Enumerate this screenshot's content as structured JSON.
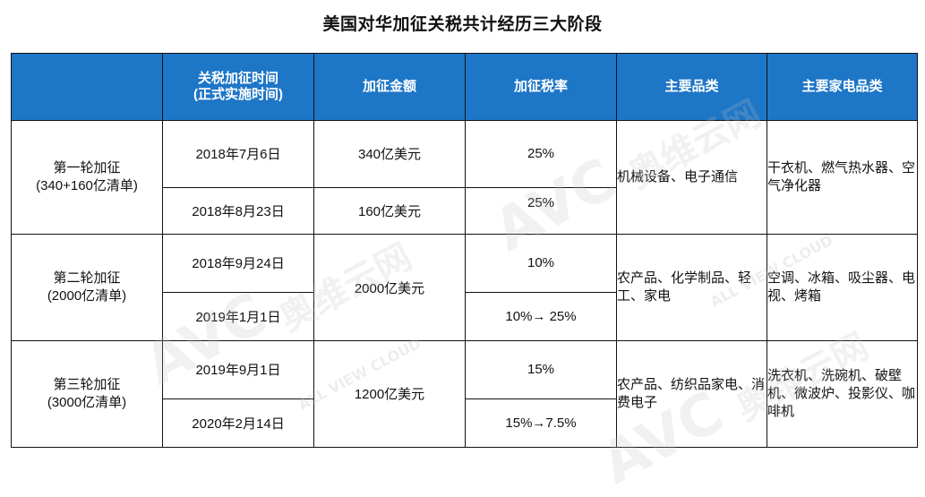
{
  "title": "美国对华加征关税共计经历三大阶段",
  "header": {
    "stage": "",
    "time_line1": "关税加征时间",
    "time_line2": "(正式实施时间)",
    "amount": "加征金额",
    "rate": "加征税率",
    "products": "主要品类",
    "appliances": "主要家电品类"
  },
  "rounds": [
    {
      "stage": "第一轮加征",
      "stage_sub": "(340+160亿清单)",
      "rows": [
        {
          "date": "2018年7月6日",
          "amount": "340亿美元",
          "rate": "25%"
        },
        {
          "date": "2018年8月23日",
          "amount": "160亿美元",
          "rate": "25%"
        }
      ],
      "products": "机械设备、电子通信",
      "appliances": "干衣机、燃气热水器、空气净化器"
    },
    {
      "stage": "第二轮加征",
      "stage_sub": "(2000亿清单)",
      "amount": "2000亿美元",
      "rows": [
        {
          "date": "2018年9月24日",
          "rate": "10%"
        },
        {
          "date": "2019年1月1日",
          "rate": "10%→ 25%"
        }
      ],
      "products": "农产品、化学制品、轻工、家电",
      "appliances": "空调、冰箱、吸尘器、电视、烤箱"
    },
    {
      "stage": "第三轮加征",
      "stage_sub": "(3000亿清单)",
      "amount": "1200亿美元",
      "rows": [
        {
          "date": "2019年9月1日",
          "rate": "15%"
        },
        {
          "date": "2020年2月14日",
          "rate": "15%→7.5%"
        }
      ],
      "products": "农产品、纺织品家电、消费电子",
      "appliances": "洗衣机、洗碗机、破壁机、微波炉、投影仪、咖啡机"
    }
  ],
  "watermark": {
    "brand": "AVC",
    "cn": "奥维云网",
    "en": "ALL VIEW CLOUD"
  }
}
